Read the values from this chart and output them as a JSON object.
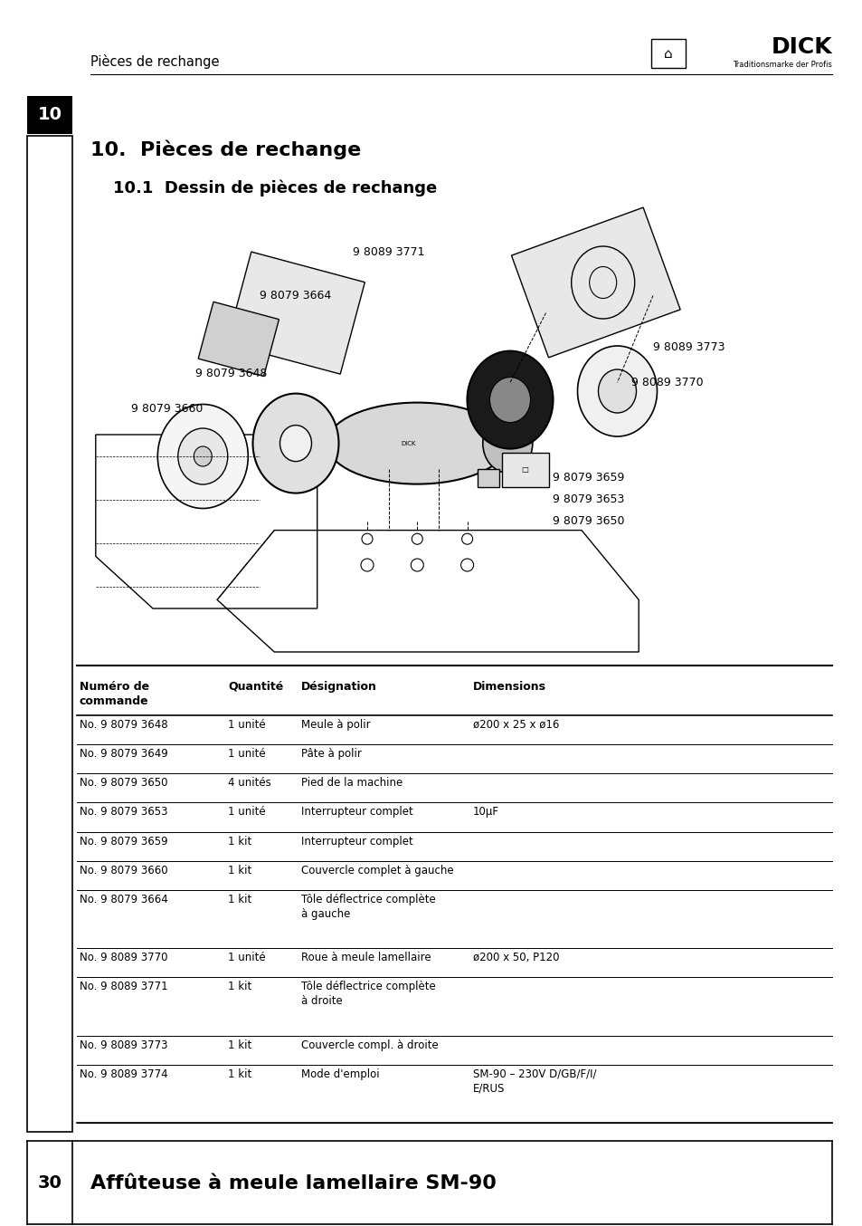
{
  "page_header_left": "Pièces de rechange",
  "page_number_top": "10",
  "section_title": "10.  Pièces de rechange",
  "subsection_title": "10.1  Dessin de pièces de rechange",
  "footer_number": "30",
  "footer_text": "Affûteuse à meule lamellaire SM-90",
  "bg_color": "#ffffff",
  "table_rows": [
    [
      "No. 9 8079 3648",
      "1 unité",
      "Meule à polir",
      "ø200 x 25 x ø16"
    ],
    [
      "No. 9 8079 3649",
      "1 unité",
      "Pâte à polir",
      ""
    ],
    [
      "No. 9 8079 3650",
      "4 unités",
      "Pied de la machine",
      ""
    ],
    [
      "No. 9 8079 3653",
      "1 unité",
      "Interrupteur complet",
      "10µF"
    ],
    [
      "No. 9 8079 3659",
      "1 kit",
      "Interrupteur complet",
      ""
    ],
    [
      "No. 9 8079 3660",
      "1 kit",
      "Couvercle complet à gauche",
      ""
    ],
    [
      "No. 9 8079 3664",
      "1 kit",
      "Tôle déflectrice complète\nà gauche",
      ""
    ],
    [
      "No. 9 8089 3770",
      "1 unité",
      "Roue à meule lamellaire",
      "ø200 x 50, P120"
    ],
    [
      "No. 9 8089 3771",
      "1 kit",
      "Tôle déflectrice complète\nà droite",
      ""
    ],
    [
      "No. 9 8089 3773",
      "1 kit",
      "Couvercle compl. à droite",
      ""
    ],
    [
      "No. 9 8089 3774",
      "1 kit",
      "Mode d'emploi",
      "SM-90 – 230V D/GB/F/I/\nE/RUS"
    ]
  ]
}
